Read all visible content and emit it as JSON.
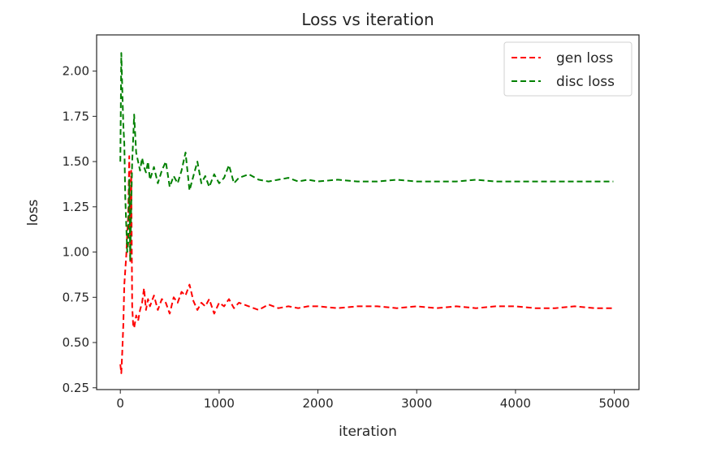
{
  "chart_data": {
    "type": "line",
    "title": "Loss vs iteration",
    "xlabel": "iteration",
    "ylabel": "loss",
    "xlim": [
      -240,
      5250
    ],
    "ylim": [
      0.24,
      2.2
    ],
    "xticks": [
      0,
      1000,
      2000,
      3000,
      4000,
      5000
    ],
    "xtick_labels": [
      "0",
      "1000",
      "2000",
      "3000",
      "4000",
      "5000"
    ],
    "yticks": [
      0.25,
      0.5,
      0.75,
      1.0,
      1.25,
      1.5,
      1.75,
      2.0
    ],
    "ytick_labels": [
      "0.25",
      "0.50",
      "0.75",
      "1.00",
      "1.25",
      "1.50",
      "1.75",
      "2.00"
    ],
    "grid": false,
    "legend_position": "top-right",
    "series": [
      {
        "name": "gen loss",
        "color": "#ff0000",
        "line_style": "dashed",
        "x": [
          0,
          10,
          20,
          30,
          40,
          50,
          60,
          70,
          80,
          90,
          100,
          110,
          120,
          130,
          140,
          160,
          180,
          200,
          220,
          240,
          260,
          280,
          300,
          340,
          380,
          420,
          460,
          500,
          540,
          580,
          620,
          660,
          700,
          740,
          780,
          820,
          860,
          900,
          950,
          1000,
          1050,
          1100,
          1150,
          1200,
          1300,
          1400,
          1500,
          1600,
          1700,
          1800,
          1900,
          2000,
          2200,
          2400,
          2600,
          2800,
          3000,
          3200,
          3400,
          3600,
          3800,
          4000,
          4200,
          4400,
          4600,
          4800,
          4990
        ],
        "y": [
          0.38,
          0.33,
          0.45,
          0.6,
          0.82,
          0.9,
          0.98,
          1.1,
          1.2,
          1.53,
          0.95,
          1.45,
          0.7,
          0.6,
          0.58,
          0.65,
          0.62,
          0.68,
          0.72,
          0.8,
          0.68,
          0.74,
          0.7,
          0.76,
          0.68,
          0.74,
          0.72,
          0.66,
          0.75,
          0.72,
          0.78,
          0.76,
          0.82,
          0.73,
          0.68,
          0.72,
          0.7,
          0.74,
          0.66,
          0.72,
          0.7,
          0.74,
          0.69,
          0.72,
          0.7,
          0.68,
          0.71,
          0.69,
          0.7,
          0.69,
          0.7,
          0.7,
          0.69,
          0.7,
          0.7,
          0.69,
          0.7,
          0.69,
          0.7,
          0.69,
          0.7,
          0.7,
          0.69,
          0.69,
          0.7,
          0.69,
          0.69
        ]
      },
      {
        "name": "disc loss",
        "color": "#008000",
        "line_style": "dashed",
        "x": [
          0,
          10,
          20,
          30,
          40,
          50,
          60,
          70,
          80,
          90,
          100,
          110,
          120,
          130,
          140,
          150,
          160,
          180,
          200,
          220,
          240,
          260,
          280,
          300,
          340,
          380,
          420,
          460,
          500,
          540,
          580,
          620,
          660,
          700,
          740,
          780,
          820,
          860,
          900,
          950,
          1000,
          1050,
          1100,
          1150,
          1200,
          1300,
          1400,
          1500,
          1600,
          1700,
          1800,
          1900,
          2000,
          2200,
          2400,
          2600,
          2800,
          3000,
          3200,
          3400,
          3600,
          3800,
          4000,
          4200,
          4400,
          4600,
          4800,
          4990
        ],
        "y": [
          1.5,
          2.1,
          1.9,
          1.7,
          1.6,
          1.3,
          1.15,
          1.0,
          1.05,
          1.4,
          0.95,
          1.25,
          1.5,
          1.62,
          1.76,
          1.65,
          1.55,
          1.5,
          1.45,
          1.52,
          1.47,
          1.44,
          1.5,
          1.4,
          1.47,
          1.38,
          1.45,
          1.5,
          1.36,
          1.42,
          1.38,
          1.45,
          1.55,
          1.34,
          1.42,
          1.5,
          1.38,
          1.42,
          1.36,
          1.43,
          1.38,
          1.41,
          1.48,
          1.38,
          1.41,
          1.43,
          1.4,
          1.39,
          1.4,
          1.41,
          1.39,
          1.4,
          1.39,
          1.4,
          1.39,
          1.39,
          1.4,
          1.39,
          1.39,
          1.39,
          1.4,
          1.39,
          1.39,
          1.39,
          1.39,
          1.39,
          1.39,
          1.39
        ]
      }
    ]
  }
}
